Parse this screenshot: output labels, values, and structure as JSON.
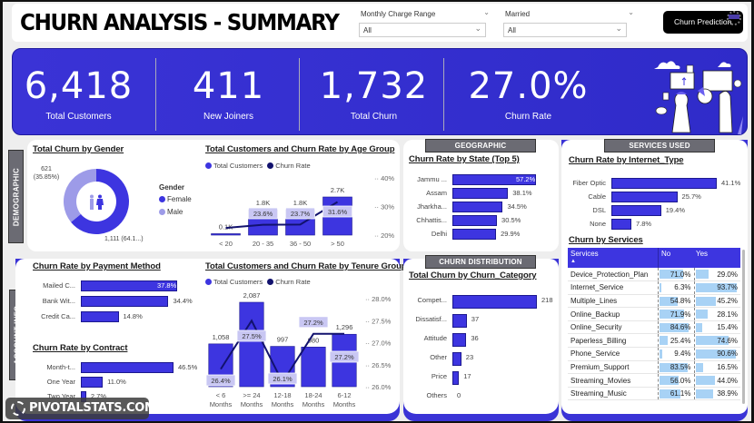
{
  "header": {
    "title": "CHURN ANALYSIS - SUMMARY",
    "filters": [
      {
        "label": "Monthly Charge Range",
        "value": "All"
      },
      {
        "label": "Married",
        "value": "All"
      }
    ],
    "predict_button": "Churn Prediction"
  },
  "kpis": [
    {
      "value": "6,418",
      "label": "Total Customers"
    },
    {
      "value": "411",
      "label": "New Joiners"
    },
    {
      "value": "1,732",
      "label": "Total Churn"
    },
    {
      "value": "27.0%",
      "label": "Churn Rate"
    }
  ],
  "sections": {
    "demographic": "DEMOGRAPHIC",
    "account_info": "ACCOUNT INFO",
    "geographic": "GEOGRAPHIC",
    "churn_distribution": "CHURN DISTRIBUTION",
    "services_used": "SERVICES USED"
  },
  "colors": {
    "primary": "#3d35e0",
    "dark_line": "#12126e",
    "male": "#9d9be8",
    "label_bg": "#c9c7f3",
    "table_bar": "#a8d2f5"
  },
  "watermark": "PIVOTALSTATS.COM",
  "chart_data": [
    {
      "id": "gender",
      "type": "pie",
      "title": "Total Churn by Gender",
      "legend_title": "Gender",
      "categories": [
        "Female",
        "Male"
      ],
      "values": [
        1111,
        621
      ],
      "labels": [
        "1,111 (64.1...)",
        "621 (35.85%)"
      ],
      "legend": "right"
    },
    {
      "id": "age",
      "type": "bar",
      "title": "Total Customers and Churn Rate by Age Group",
      "legend": [
        "Total Customers",
        "Churn Rate"
      ],
      "categories": [
        "< 20",
        "20 - 35",
        "36 - 50",
        "> 50"
      ],
      "series": [
        {
          "name": "Total Customers",
          "values": [
            100,
            1800,
            1800,
            2700
          ],
          "labels": [
            "0.1K",
            "1.8K",
            "1.8K",
            "2.7K"
          ]
        },
        {
          "name": "Churn Rate",
          "type": "line",
          "values": [
            null,
            23.6,
            23.7,
            31.6
          ],
          "labels": [
            "",
            "23.6%",
            "23.7%",
            "31.6%"
          ],
          "start_value": 22.5
        }
      ],
      "y2_ticks": [
        "40%",
        "30%",
        "20%"
      ],
      "y2lim": [
        20,
        40
      ]
    },
    {
      "id": "state",
      "type": "bar",
      "orientation": "horizontal",
      "title": "Churn Rate by State (Top 5)",
      "categories": [
        "Jammu ...",
        "Assam",
        "Jharkha...",
        "Chhattis...",
        "Delhi"
      ],
      "values": [
        57.2,
        38.1,
        34.5,
        30.5,
        29.9
      ],
      "labels": [
        "57.2%",
        "38.1%",
        "34.5%",
        "30.5%",
        "29.9%"
      ]
    },
    {
      "id": "internet",
      "type": "bar",
      "orientation": "horizontal",
      "title": "Churn Rate by Internet_Type",
      "categories": [
        "Fiber Optic",
        "Cable",
        "DSL",
        "None"
      ],
      "values": [
        41.1,
        25.7,
        19.4,
        7.8
      ],
      "labels": [
        "41.1%",
        "25.7%",
        "19.4%",
        "7.8%"
      ]
    },
    {
      "id": "payment",
      "type": "bar",
      "orientation": "horizontal",
      "title": "Churn Rate by Payment Method",
      "categories": [
        "Mailed C...",
        "Bank Wit...",
        "Credit Ca..."
      ],
      "values": [
        37.8,
        34.4,
        14.8
      ],
      "labels": [
        "37.8%",
        "34.4%",
        "14.8%"
      ]
    },
    {
      "id": "contract",
      "type": "bar",
      "orientation": "horizontal",
      "title": "Churn Rate by Contract",
      "categories": [
        "Month-t...",
        "One Year",
        "Two Year"
      ],
      "values": [
        46.5,
        11.0,
        2.7
      ],
      "labels": [
        "46.5%",
        "11.0%",
        "2.7%"
      ]
    },
    {
      "id": "tenure",
      "type": "bar",
      "title": "Total Customers and Churn Rate by Tenure Group",
      "legend": [
        "Total Customers",
        "Churn Rate"
      ],
      "categories": [
        "< 6 Months",
        ">= 24 Months",
        "12-18 Months",
        "18-24 Months",
        "6-12 Months"
      ],
      "series": [
        {
          "name": "Total Customers",
          "values": [
            1058,
            2087,
            997,
            980,
            1296
          ],
          "labels": [
            "1,058",
            "2,087",
            "997",
            "980",
            "1,296"
          ]
        },
        {
          "name": "Churn Rate",
          "type": "line",
          "values": [
            26.4,
            27.5,
            26.1,
            27.2,
            27.2
          ],
          "labels": [
            "26.4%",
            "27.5%",
            "26.1%",
            "27.2%",
            "27.2%"
          ]
        }
      ],
      "y2_ticks": [
        "28.0%",
        "27.5%",
        "27.0%",
        "26.5%",
        "26.0%"
      ],
      "y2lim": [
        26.0,
        28.0
      ]
    },
    {
      "id": "category",
      "type": "bar",
      "orientation": "horizontal",
      "title": "Total Churn by Churn_Category",
      "categories": [
        "Compet...",
        "Dissatisf...",
        "Attitude",
        "Other",
        "Price",
        "Others"
      ],
      "values": [
        218,
        37,
        36,
        23,
        17,
        0
      ],
      "labels": [
        "218",
        "37",
        "36",
        "23",
        "17",
        "0"
      ]
    },
    {
      "id": "services",
      "type": "table",
      "title": "Churn by Services",
      "columns": [
        "Services",
        "No",
        "Yes"
      ],
      "rows": [
        [
          "Device_Protection_Plan",
          71.0,
          29.0
        ],
        [
          "Internet_Service",
          6.3,
          93.7
        ],
        [
          "Multiple_Lines",
          54.8,
          45.2
        ],
        [
          "Online_Backup",
          71.9,
          28.1
        ],
        [
          "Online_Security",
          84.6,
          15.4
        ],
        [
          "Paperless_Billing",
          25.4,
          74.6
        ],
        [
          "Phone_Service",
          9.4,
          90.6
        ],
        [
          "Premium_Support",
          83.5,
          16.5
        ],
        [
          "Streaming_Movies",
          56.0,
          44.0
        ],
        [
          "Streaming_Music",
          61.1,
          38.9
        ]
      ]
    }
  ]
}
